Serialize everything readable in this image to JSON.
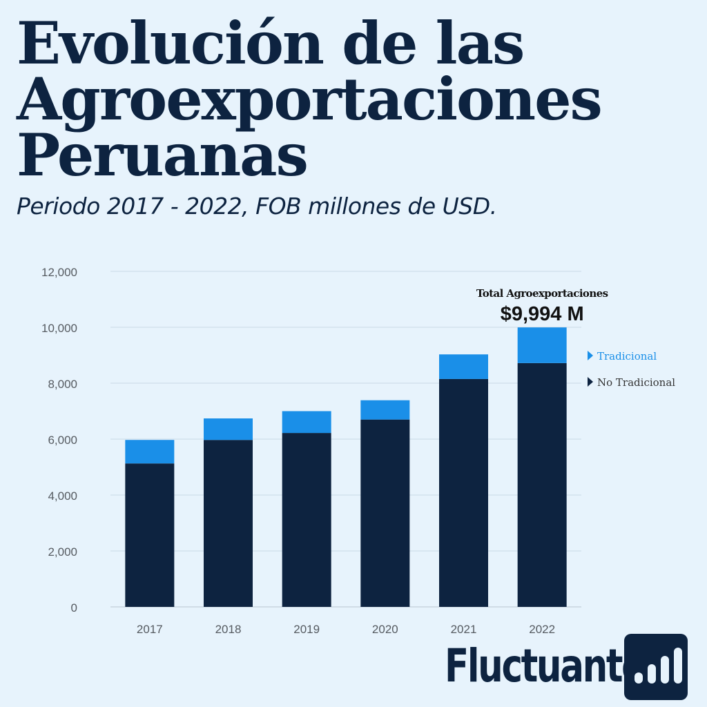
{
  "title_lines": [
    "Evolución de las",
    "Agroexportaciones",
    "Peruanas"
  ],
  "subtitle": "Periodo 2017 - 2022, FOB millones de USD.",
  "brand": {
    "name": "Fluctuante",
    "logo_icon": "bar-chart-icon"
  },
  "colors": {
    "background": "#e7f3fc",
    "dark": "#0d2340",
    "accent": "#1a8fe8",
    "grid": "#c9d9e6"
  },
  "chart_data": {
    "type": "bar",
    "stacked": true,
    "categories": [
      "2017",
      "2018",
      "2019",
      "2020",
      "2021",
      "2022"
    ],
    "series": [
      {
        "name": "No Tradicional",
        "color": "#0d2340",
        "values": [
          5130,
          5970,
          6220,
          6700,
          8150,
          8720
        ]
      },
      {
        "name": "Tradicional",
        "color": "#1a8fe8",
        "values": [
          840,
          770,
          780,
          690,
          880,
          1274
        ]
      }
    ],
    "ylim": [
      0,
      12000
    ],
    "yticks": [
      0,
      2000,
      4000,
      6000,
      8000,
      10000,
      12000
    ],
    "ytick_labels": [
      "0",
      "2,000",
      "4,000",
      "6,000",
      "8,000",
      "10,000",
      "12,000"
    ],
    "grid": true,
    "legend_position": "right",
    "annotation": {
      "label": "Total Agroexportaciones",
      "value": "$9,994 M"
    }
  }
}
